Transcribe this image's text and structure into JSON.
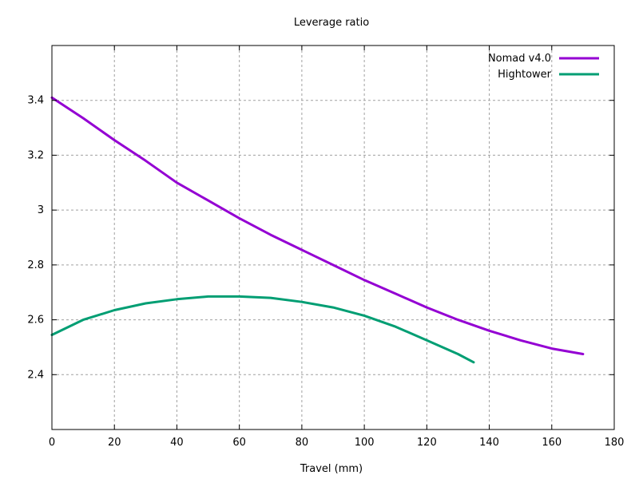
{
  "chart_data": {
    "type": "line",
    "title": "Leverage ratio",
    "xlabel": "Travel (mm)",
    "ylabel": "",
    "xlim": [
      0,
      180
    ],
    "ylim": [
      2.2,
      3.6
    ],
    "xticks": [
      0,
      20,
      40,
      60,
      80,
      100,
      120,
      140,
      160,
      180
    ],
    "yticks": [
      2.4,
      2.6,
      2.8,
      3.0,
      3.2,
      3.4
    ],
    "xtick_labels": [
      "0",
      "20",
      "40",
      "60",
      "80",
      "100",
      "120",
      "140",
      "160",
      "180"
    ],
    "ytick_labels": [
      "2.4",
      "2.6",
      "2.8",
      "3",
      "3.2",
      "3.4"
    ],
    "grid": true,
    "legend_position": "top-right",
    "series": [
      {
        "name": "Nomad v4.0",
        "color": "#9400d3",
        "x": [
          0,
          10,
          20,
          30,
          40,
          50,
          60,
          70,
          80,
          90,
          100,
          110,
          120,
          130,
          140,
          150,
          160,
          170
        ],
        "y": [
          3.41,
          3.335,
          3.255,
          3.18,
          3.1,
          3.035,
          2.97,
          2.91,
          2.855,
          2.8,
          2.745,
          2.695,
          2.645,
          2.6,
          2.56,
          2.525,
          2.495,
          2.475
        ]
      },
      {
        "name": "Hightower",
        "color": "#009e73",
        "x": [
          0,
          10,
          20,
          30,
          40,
          50,
          60,
          70,
          80,
          90,
          100,
          110,
          120,
          130,
          135
        ],
        "y": [
          2.545,
          2.6,
          2.635,
          2.66,
          2.675,
          2.685,
          2.685,
          2.68,
          2.665,
          2.645,
          2.615,
          2.575,
          2.525,
          2.475,
          2.445
        ]
      }
    ]
  }
}
